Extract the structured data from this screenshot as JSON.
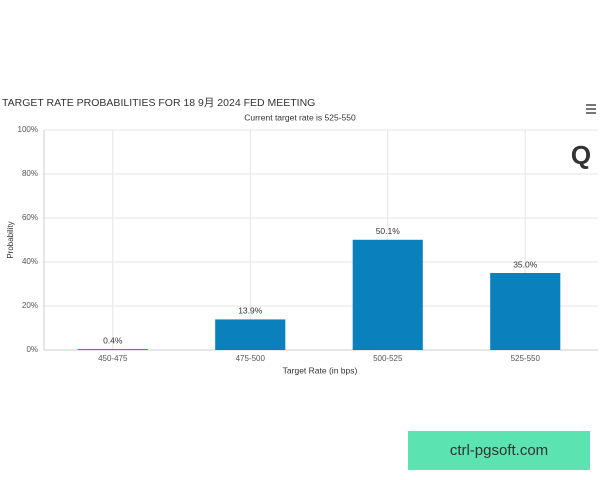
{
  "chart_data": {
    "type": "bar",
    "title": "TARGET RATE PROBABILITIES FOR 18 9月 2024 FED MEETING",
    "subtitle": "Current target rate is 525-550",
    "x_label": "Target Rate (in bps)",
    "y_label": "Probability",
    "categories": [
      "450-475",
      "475-500",
      "500-525",
      "525-550"
    ],
    "values": [
      0.4,
      13.9,
      50.1,
      35.0
    ],
    "value_labels": [
      "0.4%",
      "13.9%",
      "50.1%",
      "35.0%"
    ],
    "color": "#0a80bd",
    "ylim": [
      0,
      100
    ],
    "yticks": [
      {
        "value": 0,
        "label": "0%"
      },
      {
        "value": 20,
        "label": "20%"
      },
      {
        "value": 40,
        "label": "40%"
      },
      {
        "value": 60,
        "label": "60%"
      },
      {
        "value": 80,
        "label": "80%"
      },
      {
        "value": 100,
        "label": "100%"
      }
    ],
    "grid": true
  },
  "logo": "Q",
  "watermark": "ctrl-pgsoft.com"
}
